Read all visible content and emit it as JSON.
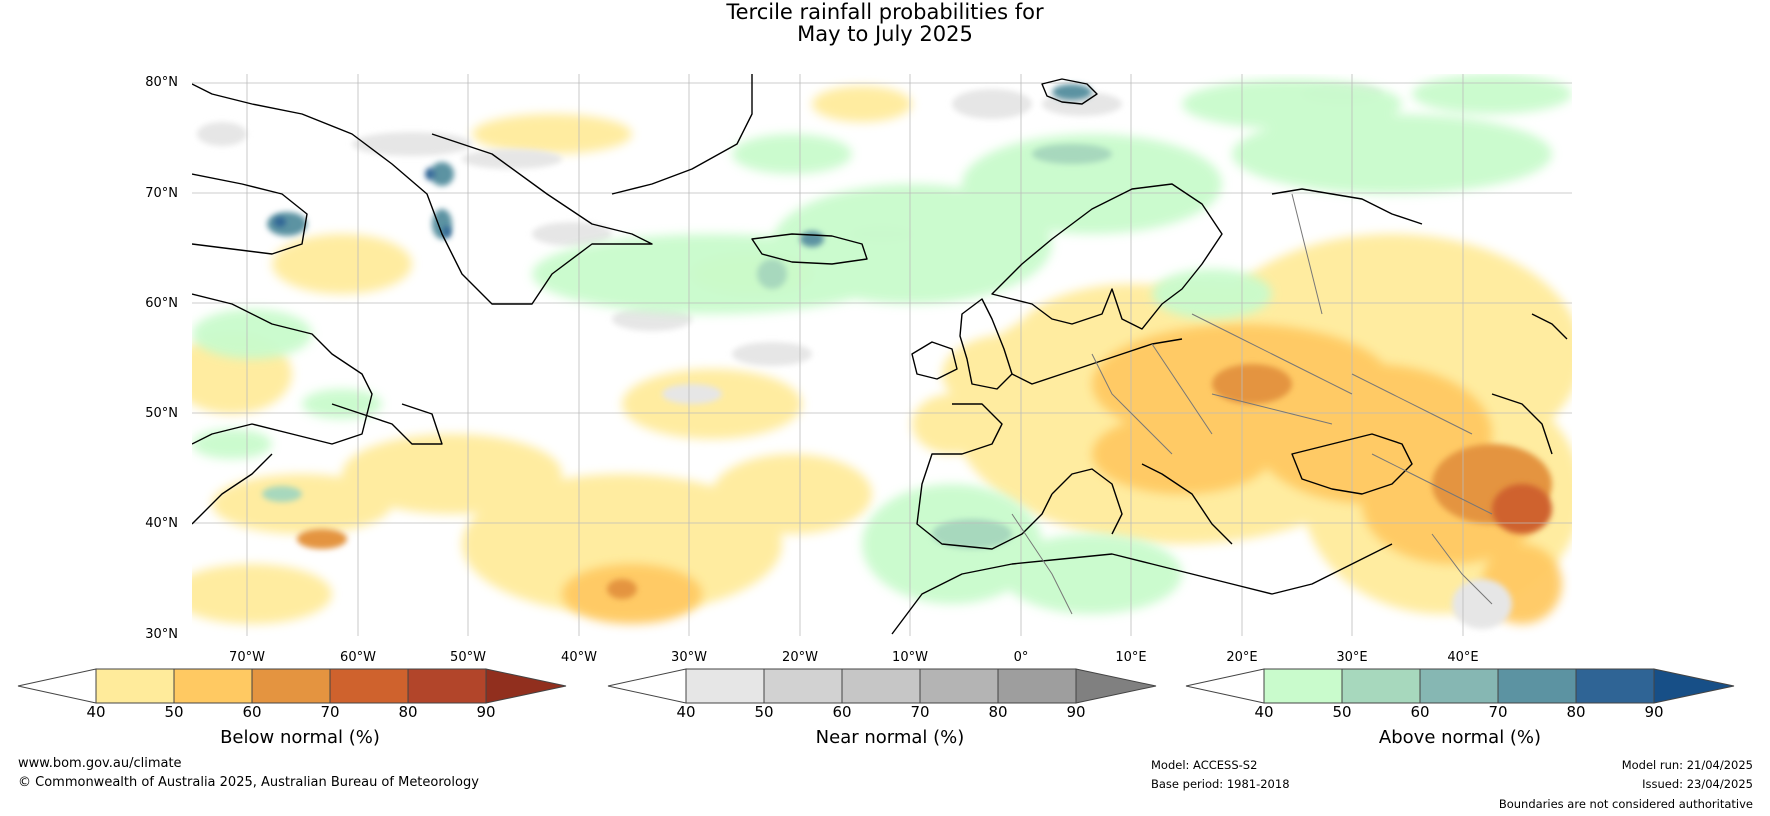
{
  "title": {
    "line1": "Tercile rainfall probabilities for",
    "line2": "May to July 2025"
  },
  "map": {
    "lat_labels": [
      "80°N",
      "70°N",
      "60°N",
      "50°N",
      "40°N",
      "30°N"
    ],
    "lon_labels": [
      "70°W",
      "60°W",
      "50°W",
      "40°W",
      "30°W",
      "20°W",
      "10°W",
      "0°",
      "10°E",
      "20°E",
      "30°E",
      "40°E"
    ],
    "region": "North Atlantic and Europe",
    "colors": {
      "below_normal": [
        "#ffeb9b",
        "#ffc962",
        "#e49440",
        "#cf622d",
        "#b2452a",
        "#912f1e"
      ],
      "near_normal": [
        "#e6e6e6",
        "#d2d2d2",
        "#c6c6c6",
        "#b4b4b4",
        "#9e9e9e",
        "#808080"
      ],
      "above_normal": [
        "#c9fbcc",
        "#a7d8bd",
        "#86b7b3",
        "#5c93a2",
        "#2f6495",
        "#174f87"
      ]
    }
  },
  "colorbars": {
    "below": {
      "label": "Below normal (%)",
      "ticks": [
        "40",
        "50",
        "60",
        "70",
        "80",
        "90"
      ]
    },
    "near": {
      "label": "Near normal (%)",
      "ticks": [
        "40",
        "50",
        "60",
        "70",
        "80",
        "90"
      ]
    },
    "above": {
      "label": "Above normal (%)",
      "ticks": [
        "40",
        "50",
        "60",
        "70",
        "80",
        "90"
      ]
    }
  },
  "footer": {
    "website": "www.bom.gov.au/climate",
    "copyright": "© Commonwealth of Australia 2025, Australian Bureau of Meteorology",
    "model": "Model: ACCESS-S2",
    "base_period": "Base period: 1981-2018",
    "model_run": "Model run: 21/04/2025",
    "issued": "Issued: 23/04/2025",
    "disclaimer": "Boundaries are not considered authoritative"
  }
}
